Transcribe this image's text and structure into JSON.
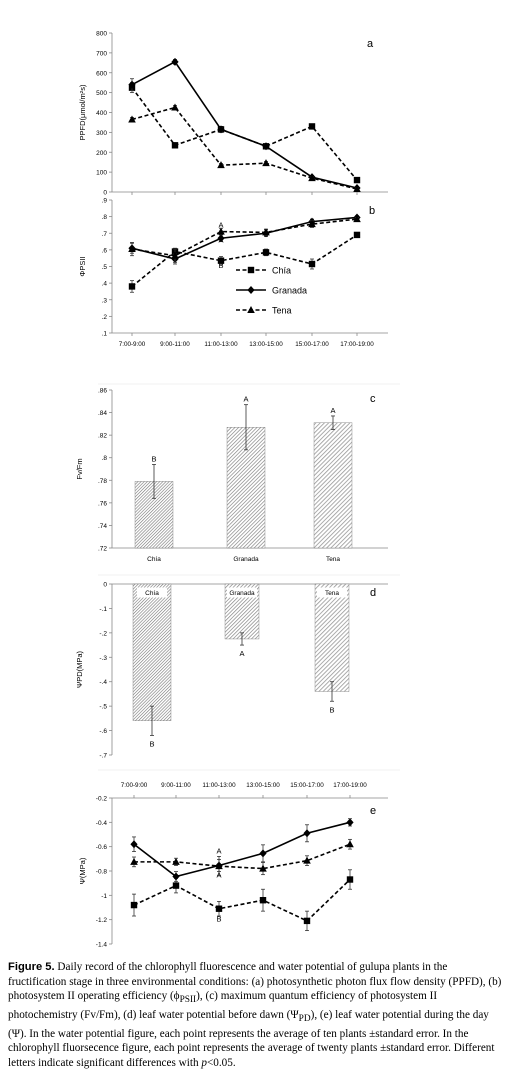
{
  "chart_data": [
    {
      "id": "a",
      "type": "line",
      "panel_label": "a",
      "ylabel": "PPFD(μmol/m²s)",
      "ylim": [
        0,
        800
      ],
      "yticks": [
        0,
        100,
        200,
        300,
        400,
        500,
        600,
        700,
        800
      ],
      "categories": [
        "7:00-9:00",
        "9:00-11:00",
        "11:00-13:00",
        "13:00-15:00",
        "15:00-17:00",
        "17:00-19:00"
      ],
      "series": [
        {
          "name": "Chía",
          "style": "square-dashed",
          "values": [
            525,
            235,
            315,
            230,
            330,
            60
          ],
          "errors": [
            25,
            10,
            15,
            10,
            12,
            10
          ]
        },
        {
          "name": "Granada",
          "style": "diamond-solid",
          "values": [
            540,
            655,
            315,
            230,
            75,
            20
          ],
          "errors": [
            30,
            12,
            10,
            10,
            8,
            5
          ]
        },
        {
          "name": "Tena",
          "style": "triangle-dashed",
          "values": [
            365,
            425,
            135,
            145,
            70,
            15
          ],
          "errors": [
            10,
            10,
            8,
            8,
            6,
            5
          ]
        }
      ]
    },
    {
      "id": "b",
      "type": "line",
      "panel_label": "b",
      "ylabel": "ΦPSII",
      "ylim": [
        0.1,
        0.9
      ],
      "yticks": [
        0.1,
        0.2,
        0.3,
        0.4,
        0.5,
        0.6,
        0.7,
        0.8,
        0.9
      ],
      "categories": [
        "7:00-9:00",
        "9:00-11:00",
        "11:00-13:00",
        "13:00-15:00",
        "15:00-17:00",
        "17:00-19:00"
      ],
      "legend_position": "center-left",
      "series": [
        {
          "name": "Chía",
          "style": "square-dashed",
          "values": [
            0.38,
            0.59,
            0.535,
            0.585,
            0.515,
            0.69
          ],
          "errors": [
            0.035,
            0.02,
            0.025,
            0.02,
            0.03,
            0.015
          ]
        },
        {
          "name": "Granada",
          "style": "diamond-solid",
          "values": [
            0.61,
            0.545,
            0.67,
            0.7,
            0.77,
            0.795
          ],
          "errors": [
            0.03,
            0.03,
            0.02,
            0.02,
            0.015,
            0.01
          ]
        },
        {
          "name": "Tena",
          "style": "triangle-dashed",
          "values": [
            0.605,
            0.565,
            0.71,
            0.705,
            0.755,
            0.785
          ],
          "errors": [
            0.04,
            0.04,
            0.02,
            0.02,
            0.02,
            0.01
          ]
        }
      ],
      "annotations": [
        {
          "text": "A",
          "category": 2,
          "y": 0.735
        },
        {
          "text": "A",
          "category": 2,
          "y": 0.645
        },
        {
          "text": "B",
          "category": 2,
          "y": 0.49
        }
      ]
    },
    {
      "id": "c",
      "type": "bar",
      "panel_label": "c",
      "ylabel": "Fv/Fm",
      "ylim": [
        0.72,
        0.86
      ],
      "yticks": [
        0.72,
        0.74,
        0.76,
        0.78,
        0.8,
        0.82,
        0.84,
        0.86
      ],
      "categories": [
        "Chía",
        "Granada",
        "Tena"
      ],
      "values": [
        0.779,
        0.827,
        0.831
      ],
      "errors": [
        0.015,
        0.02,
        0.006
      ],
      "letters": [
        "B",
        "A",
        "A"
      ]
    },
    {
      "id": "d",
      "type": "bar",
      "panel_label": "d",
      "ylabel": "ΨPD(MPa)",
      "ylim": [
        -0.7,
        0
      ],
      "yticks": [
        0,
        -0.1,
        -0.2,
        -0.3,
        -0.4,
        -0.5,
        -0.6,
        -0.7
      ],
      "categories": [
        "Chía",
        "Granada",
        "Tena"
      ],
      "values": [
        -0.56,
        -0.225,
        -0.44
      ],
      "errors": [
        0.06,
        0.025,
        0.04
      ],
      "letters": [
        "B",
        "A",
        "B"
      ]
    },
    {
      "id": "e",
      "type": "line",
      "panel_label": "e",
      "ylabel": "Ψ(MPa)",
      "ylim": [
        -1.4,
        -0.2
      ],
      "yticks": [
        -0.2,
        -0.4,
        -0.6,
        -0.8,
        -1,
        -1.2,
        -1.4
      ],
      "categories": [
        "7:00-9:00",
        "9:00-11:00",
        "11:00-13:00",
        "13:00-15:00",
        "15:00-17:00",
        "17:00-19:00"
      ],
      "series": [
        {
          "name": "Chía",
          "style": "square-dashed",
          "values": [
            -1.08,
            -0.92,
            -1.11,
            -1.04,
            -1.21,
            -0.87
          ],
          "errors": [
            0.09,
            0.06,
            0.06,
            0.09,
            0.08,
            0.08
          ]
        },
        {
          "name": "Granada",
          "style": "diamond-solid",
          "values": [
            -0.58,
            -0.845,
            -0.755,
            -0.655,
            -0.49,
            -0.4
          ],
          "errors": [
            0.06,
            0.04,
            0.05,
            0.07,
            0.07,
            0.03
          ]
        },
        {
          "name": "Tena",
          "style": "triangle-dashed",
          "values": [
            -0.725,
            -0.725,
            -0.76,
            -0.78,
            -0.715,
            -0.58
          ],
          "errors": [
            0.04,
            0.03,
            0.08,
            0.05,
            0.04,
            0.04
          ]
        }
      ],
      "annotations": [
        {
          "text": "A",
          "category": 2,
          "y": -0.655
        },
        {
          "text": "A",
          "category": 2,
          "y": -0.855
        },
        {
          "text": "B",
          "category": 2,
          "y": -1.215
        }
      ]
    }
  ],
  "caption": {
    "label": "Figure 5.",
    "text": " Daily record of the chlorophyll fluorescence and water potential of gulupa plants in the fructification stage in three environmental conditions: (a) photosynthetic photon flux flow density (PPFD), (b) photosystem II operating efficiency (ϕ",
    "sub1": "PSII",
    "text2": "), (c) maximum quantum efficiency of photosystem II photochemistry (Fv/Fm), (d) leaf water potential before dawn (Ψ",
    "sub2": "PD",
    "text3": "), (e) leaf water potential during the day (Ψ). In the water potential figure, each point represents the average of ten plants ±standard error. In the chlorophyll fluorsecence figure, each point represents the average of twenty plants ±standard error. Different letters indicate significant differences with ",
    "italic": "p",
    "text4": "<0.05."
  }
}
